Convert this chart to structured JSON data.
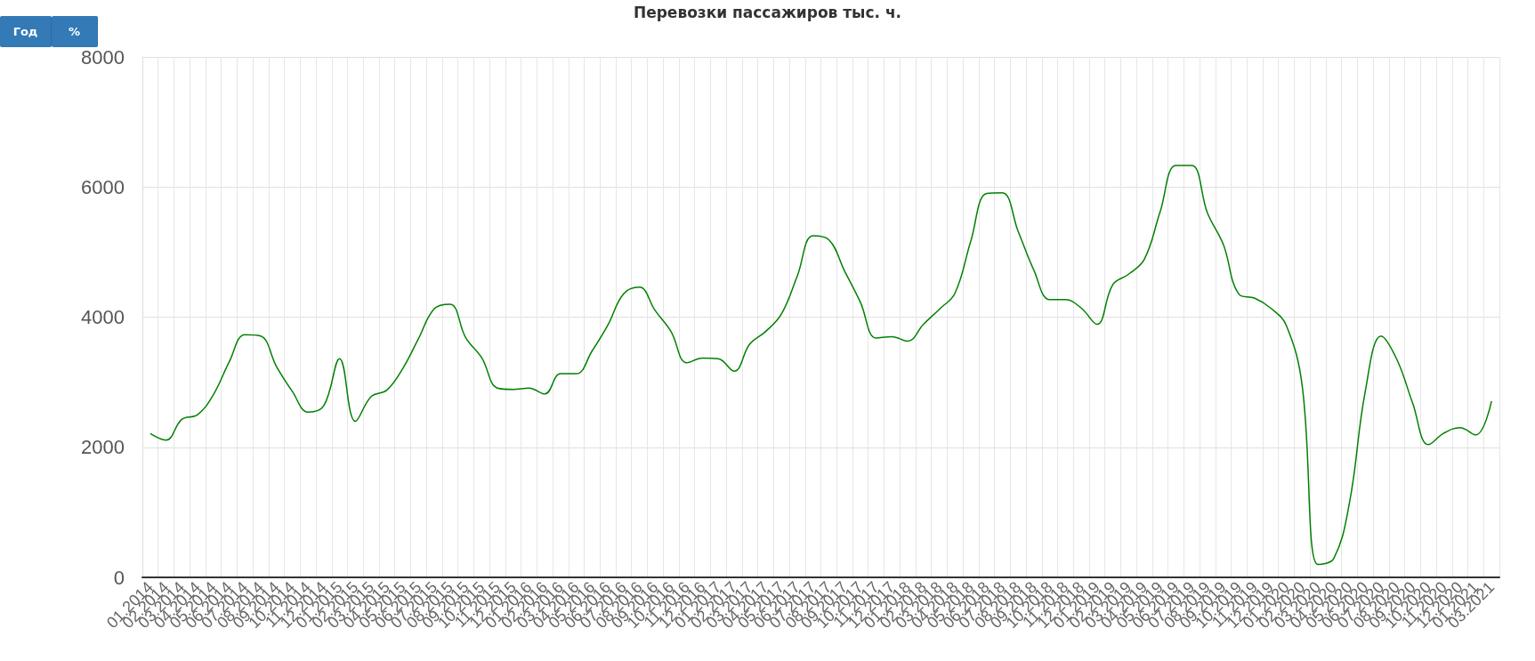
{
  "chart_data": {
    "type": "line",
    "title": "Перевозки пассажиров тыс. ч.",
    "annotations": [
      "Год",
      "%"
    ],
    "categories": [
      "01.2014",
      "02.2014",
      "03.2014",
      "04.2014",
      "05.2014",
      "06.2014",
      "07.2014",
      "08.2014",
      "09.2014",
      "10.2014",
      "11.2014",
      "12.2014",
      "01.2015",
      "02.2015",
      "03.2015",
      "04.2015",
      "05.2015",
      "06.2015",
      "07.2015",
      "08.2015",
      "09.2015",
      "10.2015",
      "11.2015",
      "12.2015",
      "01.2016",
      "02.2016",
      "03.2016",
      "04.2016",
      "05.2016",
      "06.2016",
      "07.2016",
      "08.2016",
      "09.2016",
      "10.2016",
      "11.2016",
      "12.2016",
      "01.2017",
      "02.2017",
      "03.2017",
      "04.2017",
      "05.2017",
      "06.2017",
      "07.2017",
      "08.2017",
      "09.2017",
      "10.2017",
      "11.2017",
      "12.2017",
      "01.2018",
      "02.2018",
      "03.2018",
      "04.2018",
      "05.2018",
      "06.2018",
      "07.2018",
      "08.2018",
      "09.2018",
      "10.2018",
      "11.2018",
      "12.2018",
      "01.2019",
      "02.2019",
      "03.2019",
      "04.2019",
      "05.2019",
      "06.2019",
      "07.2019",
      "08.2019",
      "09.2019",
      "10.2019",
      "11.2019",
      "12.2019",
      "01.2020",
      "02.2020",
      "03.2020",
      "04.2020",
      "05.2020",
      "06.2020",
      "07.2020",
      "08.2020",
      "09.2020",
      "10.2020",
      "11.2020",
      "12.2020",
      "01.2021",
      "03.2021"
    ],
    "series": [
      {
        "color": "#008000",
        "values": [
          2210,
          2110,
          2430,
          2500,
          2810,
          3310,
          3730,
          3710,
          3240,
          2860,
          2540,
          2640,
          3360,
          2400,
          2780,
          2880,
          3210,
          3670,
          4130,
          4200,
          3680,
          3380,
          2910,
          2890,
          2910,
          2820,
          3130,
          3130,
          3480,
          3880,
          4360,
          4460,
          4100,
          3780,
          3300,
          3370,
          3360,
          3170,
          3590,
          3780,
          4050,
          4630,
          5250,
          5190,
          4710,
          4230,
          3680,
          3700,
          3630,
          3890,
          4120,
          4370,
          5170,
          5900,
          5910,
          5320,
          4720,
          4270,
          4270,
          4140,
          3890,
          4500,
          4660,
          4890,
          5620,
          6330,
          6330,
          5600,
          5120,
          4350,
          4290,
          4140,
          3870,
          2950,
          200,
          290,
          1150,
          2860,
          3710,
          3350,
          2680,
          2040,
          2220,
          2300,
          2190,
          2710
        ]
      }
    ],
    "ylim": [
      0,
      8000
    ],
    "yticks": [
      0,
      2000,
      4000,
      6000,
      8000
    ],
    "grid": true,
    "marker": "none",
    "line_style": "solid"
  }
}
